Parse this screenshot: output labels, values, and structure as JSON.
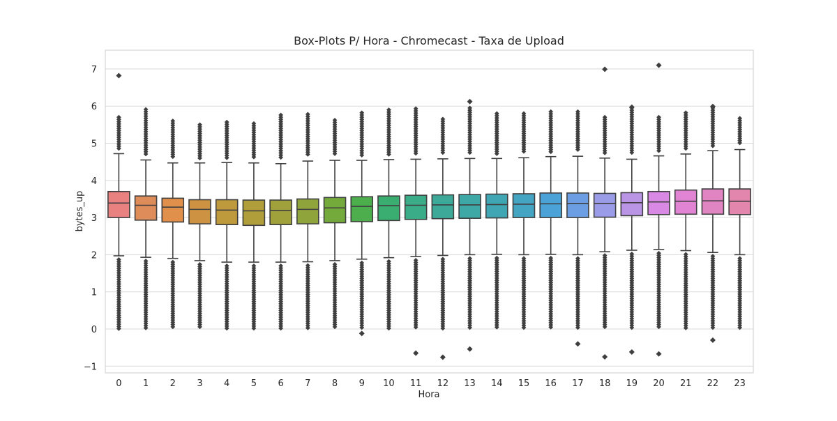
{
  "chart_data": {
    "type": "box",
    "title": "Box-Plots P/ Hora - Chromecast - Taxa de Upload",
    "xlabel": "Hora",
    "ylabel": "bytes_up",
    "categories": [
      "0",
      "1",
      "2",
      "3",
      "4",
      "5",
      "6",
      "7",
      "8",
      "9",
      "10",
      "11",
      "12",
      "13",
      "14",
      "15",
      "16",
      "17",
      "18",
      "19",
      "20",
      "21",
      "22",
      "23"
    ],
    "ylim": [
      -1.15,
      7.5
    ],
    "yticks": [
      -1,
      0,
      1,
      2,
      3,
      4,
      5,
      6,
      7
    ],
    "ytick_labels": [
      "−1",
      "0",
      "1",
      "2",
      "3",
      "4",
      "5",
      "6",
      "7"
    ],
    "grid": true,
    "boxes": [
      {
        "hour": "0",
        "q1": 3.0,
        "median": 3.39,
        "q3": 3.7,
        "whisker_low": 1.97,
        "whisker_high": 4.72,
        "max": 6.82,
        "min": 0.0,
        "color": "#e8817f"
      },
      {
        "hour": "1",
        "q1": 2.93,
        "median": 3.33,
        "q3": 3.58,
        "whisker_low": 1.93,
        "whisker_high": 4.55,
        "max": 5.91,
        "min": 0.0,
        "color": "#de8c5a"
      },
      {
        "hour": "2",
        "q1": 2.88,
        "median": 3.28,
        "q3": 3.52,
        "whisker_low": 1.9,
        "whisker_high": 4.47,
        "max": 5.6,
        "min": 0.0,
        "color": "#e0904a"
      },
      {
        "hour": "3",
        "q1": 2.83,
        "median": 3.22,
        "q3": 3.48,
        "whisker_low": 1.84,
        "whisker_high": 4.47,
        "max": 5.5,
        "min": 0.0,
        "color": "#cd9342"
      },
      {
        "hour": "4",
        "q1": 2.81,
        "median": 3.2,
        "q3": 3.48,
        "whisker_low": 1.8,
        "whisker_high": 4.48,
        "max": 5.57,
        "min": 0.0,
        "color": "#bf9a3c"
      },
      {
        "hour": "5",
        "q1": 2.79,
        "median": 3.18,
        "q3": 3.47,
        "whisker_low": 1.8,
        "whisker_high": 4.47,
        "max": 5.53,
        "min": 0.0,
        "color": "#b09e3b"
      },
      {
        "hour": "6",
        "q1": 2.81,
        "median": 3.19,
        "q3": 3.47,
        "whisker_low": 1.8,
        "whisker_high": 4.45,
        "max": 5.76,
        "min": 0.0,
        "color": "#a1a13b"
      },
      {
        "hour": "7",
        "q1": 2.83,
        "median": 3.22,
        "q3": 3.5,
        "whisker_low": 1.81,
        "whisker_high": 4.52,
        "max": 5.78,
        "min": 0.0,
        "color": "#8fa53b"
      },
      {
        "hour": "8",
        "q1": 2.86,
        "median": 3.26,
        "q3": 3.54,
        "whisker_low": 1.84,
        "whisker_high": 4.54,
        "max": 5.62,
        "min": 0.0,
        "color": "#74aa3b"
      },
      {
        "hour": "9",
        "q1": 2.89,
        "median": 3.3,
        "q3": 3.56,
        "whisker_low": 1.88,
        "whisker_high": 4.54,
        "max": 5.82,
        "min": -0.12,
        "color": "#4cae4c"
      },
      {
        "hour": "10",
        "q1": 2.92,
        "median": 3.32,
        "q3": 3.58,
        "whisker_low": 1.92,
        "whisker_high": 4.56,
        "max": 5.9,
        "min": 0.0,
        "color": "#3aad71"
      },
      {
        "hour": "11",
        "q1": 2.95,
        "median": 3.33,
        "q3": 3.6,
        "whisker_low": 1.95,
        "whisker_high": 4.57,
        "max": 5.93,
        "min": -0.65,
        "color": "#3bac88"
      },
      {
        "hour": "12",
        "q1": 2.97,
        "median": 3.34,
        "q3": 3.61,
        "whisker_low": 1.98,
        "whisker_high": 4.58,
        "max": 5.65,
        "min": -0.76,
        "color": "#3daa99"
      },
      {
        "hour": "13",
        "q1": 2.98,
        "median": 3.34,
        "q3": 3.62,
        "whisker_low": 2.0,
        "whisker_high": 4.59,
        "max": 6.12,
        "min": -0.54,
        "color": "#3ea8a6"
      },
      {
        "hour": "14",
        "q1": 2.99,
        "median": 3.35,
        "q3": 3.63,
        "whisker_low": 2.01,
        "whisker_high": 4.59,
        "max": 5.8,
        "min": 0.0,
        "color": "#40a6b3"
      },
      {
        "hour": "15",
        "q1": 3.0,
        "median": 3.36,
        "q3": 3.64,
        "whisker_low": 2.0,
        "whisker_high": 4.61,
        "max": 5.8,
        "min": 0.0,
        "color": "#43a5c2"
      },
      {
        "hour": "16",
        "q1": 3.0,
        "median": 3.37,
        "q3": 3.66,
        "whisker_low": 2.01,
        "whisker_high": 4.64,
        "max": 5.85,
        "min": 0.0,
        "color": "#4aa2d6"
      },
      {
        "hour": "17",
        "q1": 3.0,
        "median": 3.38,
        "q3": 3.66,
        "whisker_low": 2.0,
        "whisker_high": 4.65,
        "max": 5.85,
        "min": -0.4,
        "color": "#6c9ee3"
      },
      {
        "hour": "18",
        "q1": 3.01,
        "median": 3.38,
        "q3": 3.65,
        "whisker_low": 2.08,
        "whisker_high": 4.6,
        "max": 6.99,
        "min": -0.75,
        "color": "#9b9ce8"
      },
      {
        "hour": "19",
        "q1": 3.05,
        "median": 3.4,
        "q3": 3.67,
        "whisker_low": 2.12,
        "whisker_high": 4.57,
        "max": 5.97,
        "min": -0.62,
        "color": "#bb95e5"
      },
      {
        "hour": "20",
        "q1": 3.08,
        "median": 3.42,
        "q3": 3.7,
        "whisker_low": 2.14,
        "whisker_high": 4.66,
        "max": 7.1,
        "min": -0.67,
        "color": "#d889e3"
      },
      {
        "hour": "21",
        "q1": 3.09,
        "median": 3.44,
        "q3": 3.74,
        "whisker_low": 2.11,
        "whisker_high": 4.71,
        "max": 5.82,
        "min": 0.0,
        "color": "#e184d4"
      },
      {
        "hour": "22",
        "q1": 3.09,
        "median": 3.45,
        "q3": 3.77,
        "whisker_low": 2.06,
        "whisker_high": 4.8,
        "max": 5.99,
        "min": -0.3,
        "color": "#e184c2"
      },
      {
        "hour": "23",
        "q1": 3.08,
        "median": 3.44,
        "q3": 3.77,
        "whisker_low": 2.0,
        "whisker_high": 4.83,
        "max": 5.67,
        "min": 0.0,
        "color": "#e286ae"
      }
    ]
  }
}
